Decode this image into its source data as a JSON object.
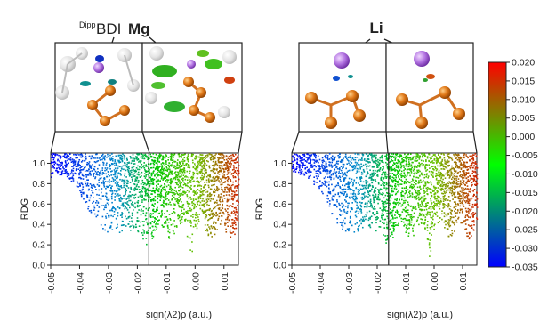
{
  "chart_data": [
    {
      "type": "scatter",
      "panel": "left",
      "title": "Mg",
      "title_superscript": "Dipp",
      "title_middle": "BDI",
      "xlabel": "sign(λ2)ρ (a.u.)",
      "ylabel": "RDG",
      "x_ticks": [
        "-0.05",
        "-0.04",
        "-0.03",
        "-0.02",
        "-0.01",
        "0.00",
        "0.01"
      ],
      "y_ticks": [
        "0.0",
        "0.2",
        "0.4",
        "0.6",
        "0.8",
        "1.0"
      ],
      "xlim": [
        -0.05,
        0.015
      ],
      "ylim": [
        0,
        1.1
      ],
      "grid": false,
      "highlight_xrange": [
        -0.016,
        0.015
      ],
      "spikes": [
        {
          "x": -0.0095,
          "min_y": 0.3
        },
        {
          "x": -0.0015,
          "min_y": 0.0
        },
        {
          "x": 0.0065,
          "min_y": 0.3
        }
      ],
      "insets": [
        "molecular-isosurface-view",
        "molecular-isosurface-view"
      ]
    },
    {
      "type": "scatter",
      "panel": "right",
      "title": "Li",
      "xlabel": "sign(λ2)ρ (a.u.)",
      "ylabel": "RDG",
      "x_ticks": [
        "-0.05",
        "-0.04",
        "-0.03",
        "-0.02",
        "-0.01",
        "0.00",
        "0.01"
      ],
      "y_ticks": [
        "0.0",
        "0.2",
        "0.4",
        "0.6",
        "0.8",
        "1.0"
      ],
      "xlim": [
        -0.05,
        0.015
      ],
      "ylim": [
        0,
        1.1
      ],
      "grid": false,
      "highlight_xrange": [
        -0.016,
        0.015
      ],
      "spikes": [
        {
          "x": -0.0095,
          "min_y": 0.25
        },
        {
          "x": -0.002,
          "min_y": 0.0
        },
        {
          "x": 0.006,
          "min_y": 0.2
        }
      ],
      "insets": [
        "molecular-isosurface-view",
        "molecular-isosurface-view"
      ]
    }
  ],
  "colorbar": {
    "type": "colorbar",
    "range": [
      -0.035,
      0.02
    ],
    "ticks": [
      "0.020",
      "0.015",
      "0.010",
      "0.005",
      "0.000",
      "-0.005",
      "-0.010",
      "-0.015",
      "-0.020",
      "-0.025",
      "-0.030",
      "-0.035"
    ],
    "colors": [
      "#0000ff",
      "#00ff00",
      "#ff0000"
    ]
  },
  "colors": {
    "atom_orange": "#e07818",
    "atom_purple": "#b070e0",
    "carbon_grey": "#d8d8d8"
  }
}
